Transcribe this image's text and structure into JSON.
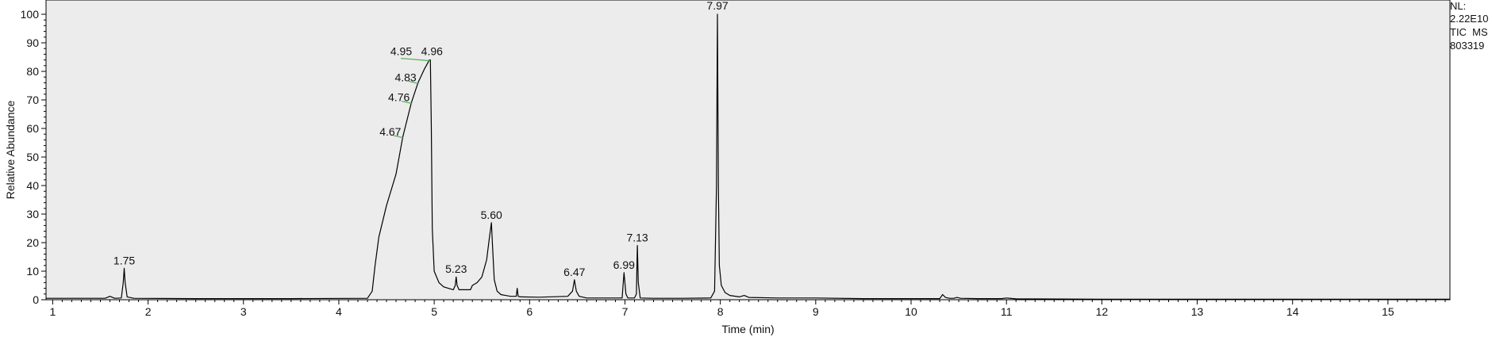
{
  "chart_data": {
    "type": "line",
    "xlabel": "Time (min)",
    "ylabel": "Relative Abundance",
    "xlim": [
      0.93,
      15.65
    ],
    "ylim": [
      0,
      100
    ],
    "x_ticks": [
      1,
      2,
      3,
      4,
      5,
      6,
      7,
      8,
      9,
      10,
      11,
      12,
      13,
      14,
      15
    ],
    "y_ticks": [
      0,
      10,
      20,
      30,
      40,
      50,
      60,
      70,
      80,
      90,
      100
    ],
    "grid": false,
    "background_color": "#ececec",
    "line_color": "#000000",
    "marker_color": "#4caf50",
    "info": {
      "nl_label": "NL:",
      "nl_value": "2.22E10",
      "trace": "TIC  MS",
      "file": "803319"
    },
    "peak_labels": [
      {
        "label": "1.75",
        "x": 1.75,
        "y": 11
      },
      {
        "label": "4.67",
        "x": 4.67,
        "y": 57
      },
      {
        "label": "4.76",
        "x": 4.76,
        "y": 69
      },
      {
        "label": "4.83",
        "x": 4.83,
        "y": 76
      },
      {
        "label": "4.95",
        "x": 4.95,
        "y": 84
      },
      {
        "label": "4.96",
        "x": 4.96,
        "y": 84
      },
      {
        "label": "5.23",
        "x": 5.23,
        "y": 8
      },
      {
        "label": "5.60",
        "x": 5.6,
        "y": 27
      },
      {
        "label": "6.47",
        "x": 6.47,
        "y": 7
      },
      {
        "label": "6.99",
        "x": 6.99,
        "y": 9.5
      },
      {
        "label": "7.13",
        "x": 7.13,
        "y": 19
      },
      {
        "label": "7.97",
        "x": 7.97,
        "y": 100
      }
    ],
    "series": [
      {
        "x": [
          0.93,
          1.55,
          1.6,
          1.65,
          1.72,
          1.74,
          1.75,
          1.76,
          1.78,
          1.85,
          2.5,
          3.5,
          4.3,
          4.35,
          4.38,
          4.42,
          4.5,
          4.6,
          4.67,
          4.76,
          4.83,
          4.9,
          4.95,
          4.96,
          4.97,
          4.98,
          5.0,
          5.05,
          5.1,
          5.2,
          5.22,
          5.23,
          5.24,
          5.26,
          5.38,
          5.4,
          5.45,
          5.5,
          5.55,
          5.58,
          5.6,
          5.61,
          5.63,
          5.66,
          5.7,
          5.8,
          5.86,
          5.87,
          5.88,
          5.9,
          6.1,
          6.4,
          6.45,
          6.47,
          6.49,
          6.52,
          6.6,
          6.97,
          6.99,
          7.01,
          7.03,
          7.1,
          7.12,
          7.13,
          7.14,
          7.16,
          7.3,
          7.6,
          7.9,
          7.94,
          7.96,
          7.97,
          7.98,
          7.99,
          8.01,
          8.05,
          8.1,
          8.2,
          8.25,
          8.3,
          8.6,
          9.0,
          9.5,
          10.3,
          10.33,
          10.36,
          10.4,
          10.45,
          10.48,
          10.52,
          10.7,
          10.95,
          11.0,
          11.1,
          12.0,
          13.0,
          14.0,
          15.0,
          15.65
        ],
        "y": [
          0.5,
          0.5,
          1.2,
          0.5,
          0.6,
          6,
          11,
          6,
          1,
          0.5,
          0.4,
          0.4,
          0.5,
          3,
          12,
          22,
          33,
          44,
          57,
          69,
          76,
          81,
          84,
          84,
          60,
          25,
          10,
          6,
          4.5,
          3.5,
          5,
          8,
          5,
          3.5,
          3.5,
          5,
          6,
          8,
          14,
          22,
          27,
          20,
          7,
          3,
          1.8,
          1.2,
          1.2,
          4,
          1.2,
          1.0,
          0.9,
          1.2,
          3,
          7,
          3,
          1.2,
          0.6,
          0.6,
          9.5,
          2,
          0.6,
          0.6,
          2,
          19,
          6,
          0.6,
          0.5,
          0.5,
          0.6,
          3,
          40,
          100,
          40,
          12,
          5,
          2.5,
          1.5,
          1.0,
          1.5,
          0.8,
          0.6,
          0.6,
          0.4,
          0.4,
          1.8,
          0.8,
          0.5,
          0.5,
          0.8,
          0.5,
          0.4,
          0.4,
          0.6,
          0.3,
          0.2,
          0.2,
          0.2,
          0.2,
          0.2
        ]
      }
    ]
  }
}
